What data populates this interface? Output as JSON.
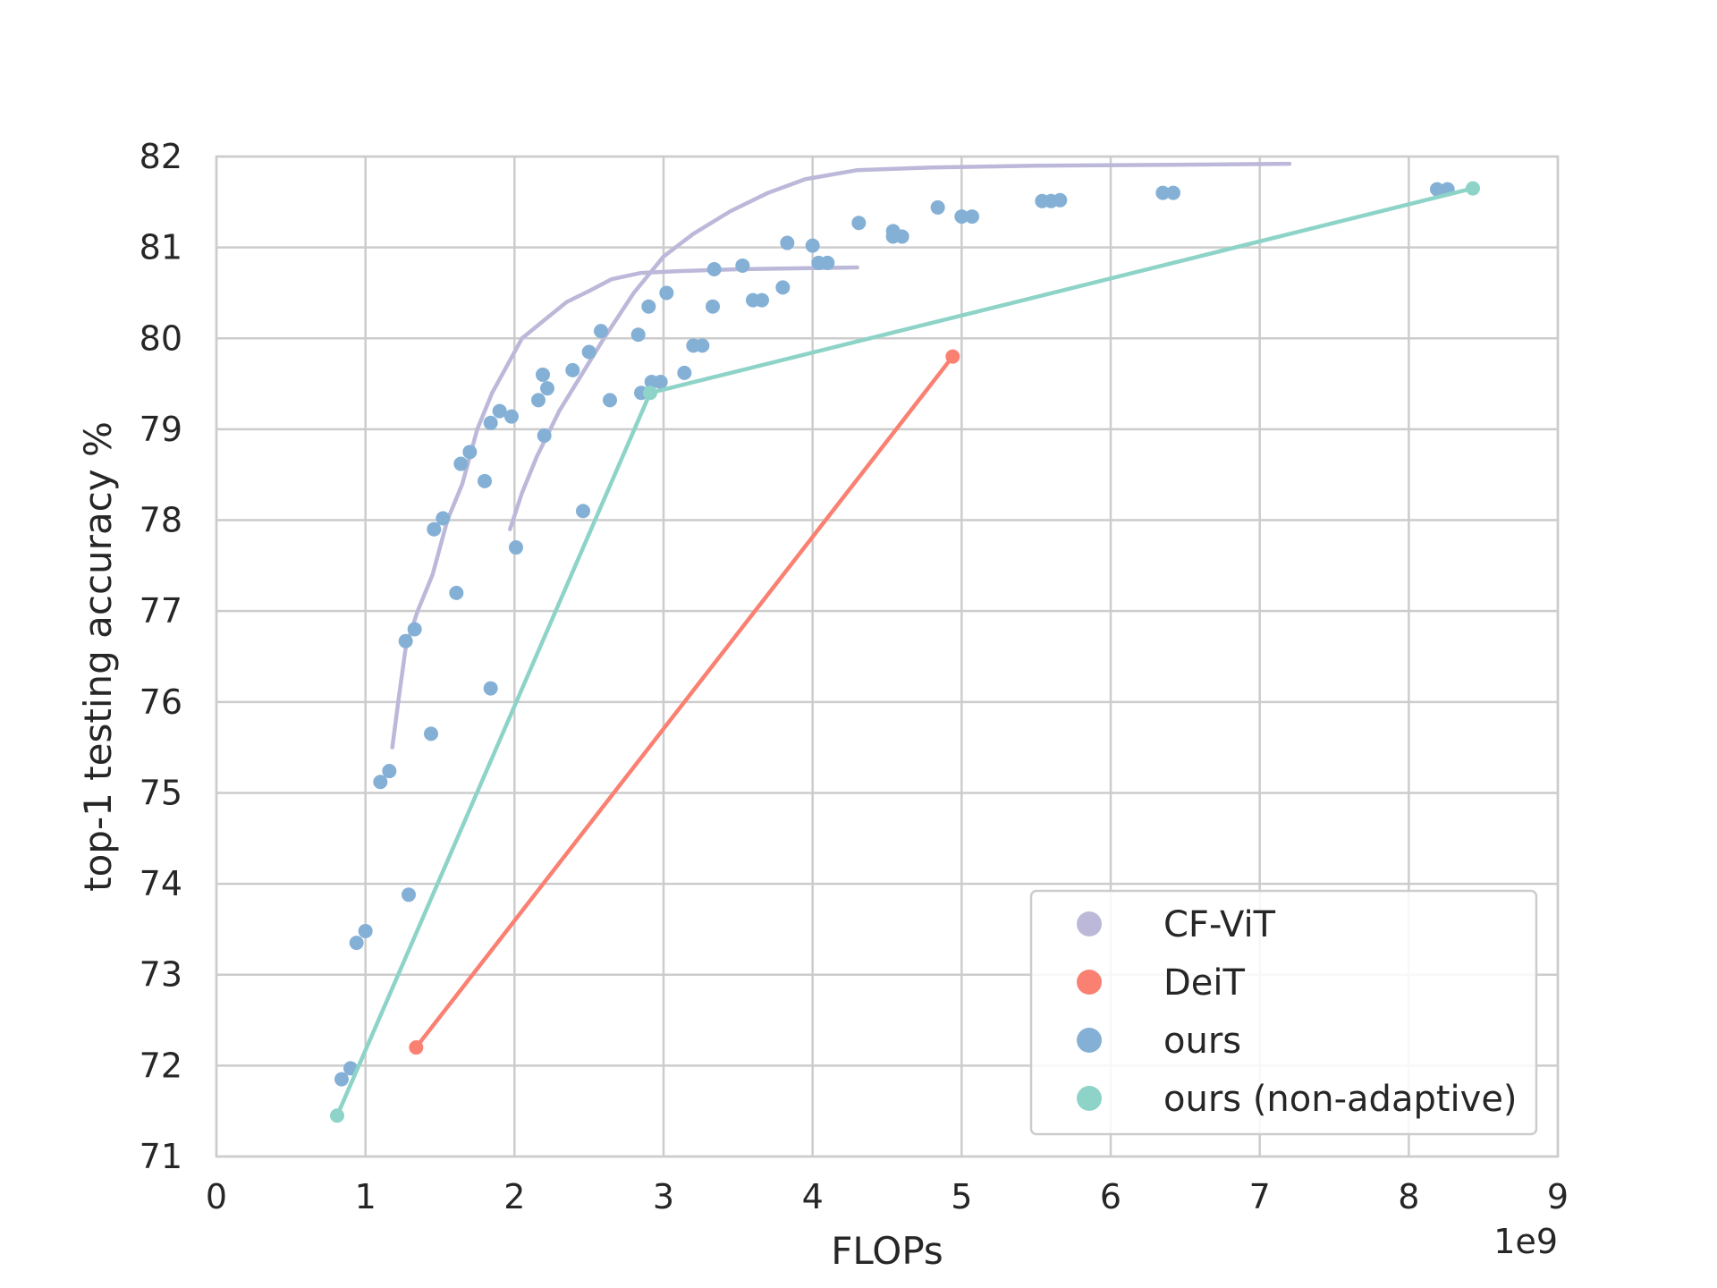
{
  "chart_data": {
    "type": "scatter",
    "xlabel": "FLOPs",
    "ylabel": "top-1 testing accuracy %",
    "x_offset_label": "1e9",
    "xlim": [
      0,
      9
    ],
    "ylim": [
      71,
      82
    ],
    "x_unit_multiplier": 1000000000,
    "xticks": [
      "0",
      "1",
      "2",
      "3",
      "4",
      "5",
      "6",
      "7",
      "8",
      "9"
    ],
    "yticks": [
      "71",
      "72",
      "73",
      "74",
      "75",
      "76",
      "77",
      "78",
      "79",
      "80",
      "81",
      "82"
    ],
    "grid": true,
    "legend_position": "lower right",
    "series": [
      {
        "name": "CF-ViT",
        "kind": "line",
        "color": "#bcb8d9",
        "curves": [
          [
            [
              1.18,
              75.5
            ],
            [
              1.22,
              76.0
            ],
            [
              1.27,
              76.6
            ],
            [
              1.35,
              77.0
            ],
            [
              1.45,
              77.4
            ],
            [
              1.55,
              78.0
            ],
            [
              1.65,
              78.4
            ],
            [
              1.75,
              79.0
            ],
            [
              1.85,
              79.4
            ],
            [
              1.95,
              79.7
            ],
            [
              2.05,
              80.0
            ],
            [
              2.2,
              80.2
            ],
            [
              2.35,
              80.4
            ],
            [
              2.5,
              80.52
            ],
            [
              2.65,
              80.65
            ],
            [
              2.85,
              80.72
            ],
            [
              3.1,
              80.74
            ],
            [
              3.5,
              80.76
            ],
            [
              4.3,
              80.78
            ]
          ],
          [
            [
              1.97,
              77.9
            ],
            [
              2.05,
              78.3
            ],
            [
              2.15,
              78.7
            ],
            [
              2.3,
              79.2
            ],
            [
              2.45,
              79.6
            ],
            [
              2.6,
              80.0
            ],
            [
              2.8,
              80.5
            ],
            [
              3.0,
              80.9
            ],
            [
              3.2,
              81.15
            ],
            [
              3.45,
              81.4
            ],
            [
              3.7,
              81.6
            ],
            [
              3.95,
              81.75
            ],
            [
              4.3,
              81.85
            ],
            [
              4.8,
              81.88
            ],
            [
              5.5,
              81.9
            ],
            [
              6.5,
              81.91
            ],
            [
              7.2,
              81.92
            ]
          ]
        ]
      },
      {
        "name": "DeiT",
        "kind": "line",
        "color": "#fa8072",
        "points": [
          [
            1.34,
            72.2
          ],
          [
            4.94,
            79.8
          ]
        ]
      },
      {
        "name": "ours",
        "kind": "scatter",
        "color": "#84b0d6",
        "points": [
          [
            0.84,
            71.85
          ],
          [
            0.9,
            71.97
          ],
          [
            0.94,
            73.35
          ],
          [
            1.0,
            73.48
          ],
          [
            1.29,
            73.88
          ],
          [
            1.1,
            75.12
          ],
          [
            1.16,
            75.24
          ],
          [
            1.44,
            75.65
          ],
          [
            1.84,
            76.15
          ],
          [
            1.27,
            76.67
          ],
          [
            1.33,
            76.8
          ],
          [
            1.61,
            77.2
          ],
          [
            1.46,
            77.9
          ],
          [
            1.52,
            78.02
          ],
          [
            2.01,
            77.7
          ],
          [
            2.46,
            78.1
          ],
          [
            1.64,
            78.62
          ],
          [
            1.7,
            78.75
          ],
          [
            1.8,
            78.43
          ],
          [
            2.2,
            78.93
          ],
          [
            1.84,
            79.07
          ],
          [
            1.9,
            79.2
          ],
          [
            1.98,
            79.14
          ],
          [
            2.16,
            79.32
          ],
          [
            2.22,
            79.45
          ],
          [
            2.19,
            79.6
          ],
          [
            2.39,
            79.65
          ],
          [
            2.5,
            79.85
          ],
          [
            2.58,
            80.08
          ],
          [
            2.64,
            79.32
          ],
          [
            2.83,
            80.04
          ],
          [
            2.85,
            79.4
          ],
          [
            2.92,
            79.52
          ],
          [
            2.98,
            79.52
          ],
          [
            3.14,
            79.62
          ],
          [
            3.2,
            79.92
          ],
          [
            3.26,
            79.92
          ],
          [
            2.9,
            80.35
          ],
          [
            3.02,
            80.5
          ],
          [
            3.33,
            80.35
          ],
          [
            3.34,
            80.76
          ],
          [
            3.53,
            80.8
          ],
          [
            3.6,
            80.42
          ],
          [
            3.66,
            80.42
          ],
          [
            3.8,
            80.56
          ],
          [
            3.83,
            81.05
          ],
          [
            4.0,
            81.02
          ],
          [
            4.04,
            80.83
          ],
          [
            4.1,
            80.83
          ],
          [
            4.31,
            81.27
          ],
          [
            4.54,
            81.18
          ],
          [
            4.54,
            81.12
          ],
          [
            4.6,
            81.12
          ],
          [
            4.84,
            81.44
          ],
          [
            5.0,
            81.34
          ],
          [
            5.07,
            81.34
          ],
          [
            5.54,
            81.51
          ],
          [
            5.6,
            81.51
          ],
          [
            5.66,
            81.52
          ],
          [
            6.35,
            81.6
          ],
          [
            6.42,
            81.6
          ],
          [
            8.19,
            81.64
          ],
          [
            8.26,
            81.64
          ]
        ]
      },
      {
        "name": "ours (non-adaptive)",
        "kind": "line",
        "color": "#8dd3c7",
        "points": [
          [
            0.81,
            71.45
          ],
          [
            2.91,
            79.4
          ],
          [
            8.43,
            81.65
          ]
        ]
      }
    ]
  }
}
